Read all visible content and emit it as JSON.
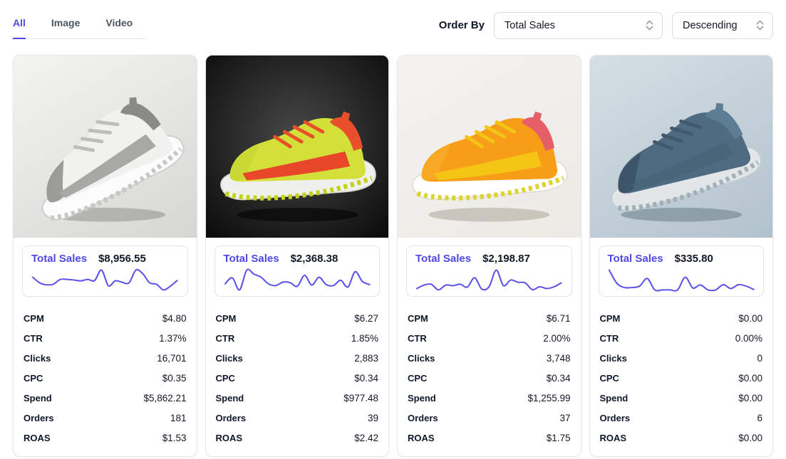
{
  "accent_color": "#5048e5",
  "sparkline_color": "#5a51e8",
  "tabs": [
    {
      "label": "All",
      "active": true
    },
    {
      "label": "Image",
      "active": false
    },
    {
      "label": "Video",
      "active": false
    }
  ],
  "order_by": {
    "label": "Order By",
    "sort_field": "Total Sales",
    "sort_direction": "Descending"
  },
  "total_sales_label": "Total Sales",
  "metric_labels": [
    "CPM",
    "CTR",
    "Clicks",
    "CPC",
    "Spend",
    "Orders",
    "ROAS"
  ],
  "cards": [
    {
      "product": "gray-white-sneaker",
      "total_sales": "$8,956.55",
      "sparkline": [
        60,
        40,
        33,
        35,
        52,
        52,
        50,
        47,
        52,
        48,
        85,
        30,
        47,
        42,
        40,
        85,
        72,
        40,
        35,
        15,
        28,
        48
      ],
      "metrics": [
        "$4.80",
        "1.37%",
        "16,701",
        "$0.35",
        "$5,862.21",
        "181",
        "$1.53"
      ],
      "image": {
        "bgType": "linear",
        "bg1": "#f4f4f2",
        "bg2": "#d6d6d4",
        "body": "#f1f1ef",
        "toe": "#9b9b99",
        "panel": "#a8a8a6",
        "collar": "#8a8a88",
        "sole": "#fcfcfc",
        "soleEdge": "#cfcfcd",
        "tread": "#c7c7c5",
        "lace": "#bdbdbb",
        "shadow": "rgba(100,100,100,0.35)",
        "rotate": -22
      }
    },
    {
      "product": "neon-yellow-red-sneaker",
      "total_sales": "$2,368.38",
      "sparkline": [
        35,
        60,
        10,
        92,
        75,
        62,
        35,
        28,
        42,
        40,
        25,
        70,
        30,
        62,
        32,
        28,
        50,
        22,
        85,
        45,
        32
      ],
      "metrics": [
        "$6.27",
        "1.85%",
        "2,883",
        "$0.34",
        "$977.48",
        "39",
        "$2.42"
      ],
      "image": {
        "bgType": "radial",
        "bg1": "#484848",
        "bg2": "#0a0a0a",
        "body": "#d4e03a",
        "toe": "#c9d832",
        "panel": "#e8472a",
        "collar": "#e8502c",
        "sole": "#f0f0ee",
        "soleEdge": "#d9d9d5",
        "tread": "#c2d318",
        "lace": "#e8502c",
        "shadow": "rgba(0,0,0,0.55)",
        "rotate": 0
      }
    },
    {
      "product": "orange-yellow-sneaker",
      "total_sales": "$2,198.87",
      "sparkline": [
        30,
        42,
        45,
        25,
        42,
        40,
        45,
        35,
        68,
        28,
        36,
        95,
        40,
        60,
        52,
        50,
        26,
        36,
        30,
        36,
        50
      ],
      "metrics": [
        "$6.71",
        "2.00%",
        "3,748",
        "$0.34",
        "$1,255.99",
        "37",
        "$1.75"
      ],
      "image": {
        "bgType": "linear",
        "bg1": "#f5f3f0",
        "bg2": "#eceae5",
        "body": "#f79d18",
        "toe": "#f8a825",
        "panel": "#f4c514",
        "collar": "#e55f68",
        "sole": "#ffffff",
        "soleEdge": "#e4e0d8",
        "tread": "#ddd32f",
        "lace": "#f4c514",
        "shadow": "rgba(120,110,90,0.3)",
        "rotate": 0
      }
    },
    {
      "product": "slate-blue-sneaker",
      "total_sales": "$335.80",
      "sparkline": [
        95,
        40,
        22,
        22,
        28,
        60,
        12,
        12,
        12,
        12,
        65,
        20,
        33,
        12,
        12,
        34,
        18,
        34,
        28,
        14
      ],
      "metrics": [
        "$0.00",
        "0.00%",
        "0",
        "$0.00",
        "$0.00",
        "6",
        "$0.00"
      ],
      "image": {
        "bgType": "linear",
        "bg1": "#d5dfe5",
        "bg2": "#b2c2cd",
        "body": "#4e6b82",
        "toe": "#3d5568",
        "panel": "#46607494",
        "collar": "#5d7d93",
        "sole": "#e3e6e7",
        "soleEdge": "#c3ccd1",
        "tread": "#9fb0ba",
        "lace": "#41596d",
        "shadow": "rgba(60,80,95,0.35)",
        "rotate": -12
      }
    }
  ]
}
